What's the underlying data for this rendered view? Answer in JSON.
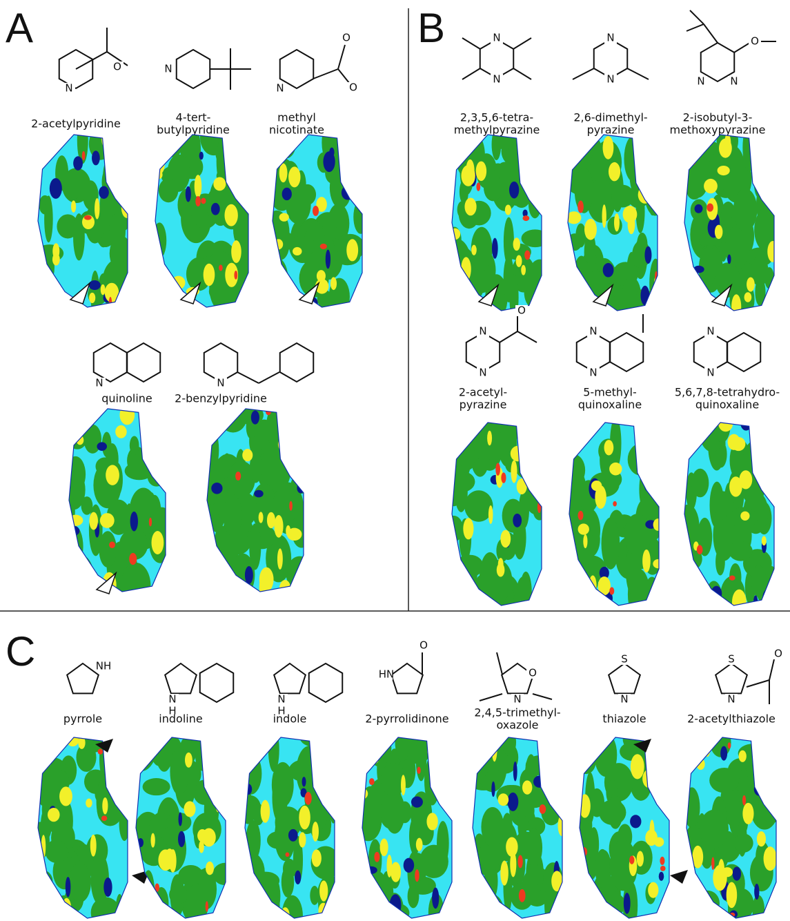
{
  "panels": [
    {
      "label": "A",
      "compounds": [
        {
          "name": [
            "2-acetylpyridine"
          ],
          "atoms": [
            "N",
            "O"
          ]
        },
        {
          "name": [
            "4-tert-",
            "butylpyridine"
          ],
          "atoms": [
            "N"
          ]
        },
        {
          "name": [
            "methyl",
            "nicotinate"
          ],
          "atoms": [
            "O",
            "N",
            "O"
          ]
        },
        {
          "name": [
            "quinoline"
          ],
          "atoms": [
            "N"
          ]
        },
        {
          "name": [
            "2-benzylpyridine"
          ],
          "atoms": [
            "N"
          ]
        }
      ]
    },
    {
      "label": "B",
      "compounds": [
        {
          "name": [
            "2,3,5,6-tetra-",
            "methylpyrazine"
          ],
          "atoms": [
            "N",
            "N"
          ]
        },
        {
          "name": [
            "2,6-dimethyl-",
            "pyrazine"
          ],
          "atoms": [
            "N",
            "N"
          ]
        },
        {
          "name": [
            "2-isobutyl-3-",
            "methoxypyrazine"
          ],
          "atoms": [
            "O",
            "N",
            "N"
          ]
        },
        {
          "name": [
            "2-acetyl-",
            "pyrazine"
          ],
          "atoms": [
            "O",
            "N",
            "N"
          ]
        },
        {
          "name": [
            "5-methyl-",
            "quinoxaline"
          ],
          "atoms": [
            "N",
            "N"
          ]
        },
        {
          "name": [
            "5,6,7,8-tetrahydro-",
            "quinoxaline"
          ],
          "atoms": [
            "N",
            "N"
          ]
        }
      ]
    },
    {
      "label": "C",
      "compounds": [
        {
          "name": [
            "pyrrole"
          ],
          "atoms": [
            "NH"
          ]
        },
        {
          "name": [
            "indoline"
          ],
          "atoms": [
            "N",
            "H"
          ]
        },
        {
          "name": [
            "indole"
          ],
          "atoms": [
            "N",
            "H"
          ]
        },
        {
          "name": [
            "2-pyrrolidinone"
          ],
          "atoms": [
            "O",
            "HN"
          ]
        },
        {
          "name": [
            "2,4,5-trimethyl-",
            "oxazole"
          ],
          "atoms": [
            "O",
            "N"
          ]
        },
        {
          "name": [
            "thiazole"
          ],
          "atoms": [
            "S",
            "N"
          ]
        },
        {
          "name": [
            "2-acetylthiazole"
          ],
          "atoms": [
            "S",
            "O",
            "N"
          ]
        }
      ]
    }
  ]
}
